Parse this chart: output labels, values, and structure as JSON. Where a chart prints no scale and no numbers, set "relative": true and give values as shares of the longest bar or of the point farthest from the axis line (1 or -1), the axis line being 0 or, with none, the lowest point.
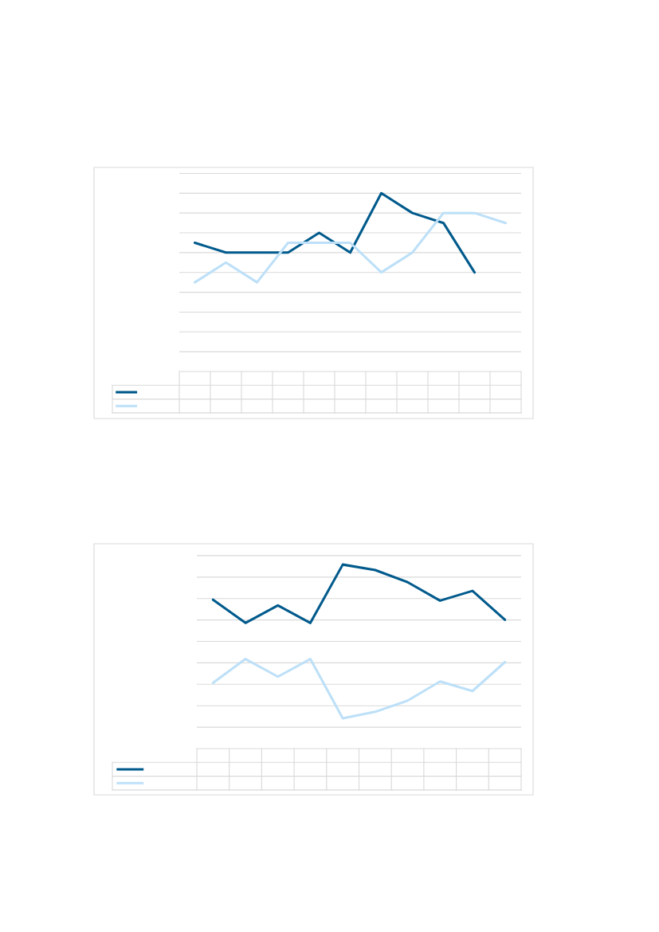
{
  "chart_data": [
    {
      "type": "line",
      "relative": true,
      "categories": [
        null,
        null,
        null,
        null,
        null,
        null,
        null,
        null,
        null,
        null,
        null
      ],
      "grid": "y",
      "series": [
        {
          "color": "#005a8c",
          "values": [
            0.722,
            0.667,
            0.667,
            0.667,
            0.778,
            0.667,
            1,
            0.889,
            0.833,
            0.556,
            null
          ]
        },
        {
          "color": "#bde0f8",
          "values": [
            0.5,
            0.611,
            0.5,
            0.722,
            0.722,
            0.722,
            0.556,
            0.667,
            0.889,
            0.889,
            0.833
          ]
        }
      ]
    },
    {
      "type": "line",
      "relative": true,
      "categories": [
        null,
        null,
        null,
        null,
        null,
        null,
        null,
        null,
        null,
        null
      ],
      "grid": "y",
      "series": [
        {
          "color": "#005a8c",
          "values": [
            0.809,
            0.683,
            0.778,
            0.683,
            1,
            0.97,
            0.904,
            0.804,
            0.857,
            0.7
          ]
        },
        {
          "color": "#bde0f8",
          "values": [
            0.357,
            0.487,
            0.391,
            0.487,
            0.165,
            0.2,
            0.261,
            0.365,
            0.313,
            0.47
          ]
        }
      ]
    }
  ]
}
